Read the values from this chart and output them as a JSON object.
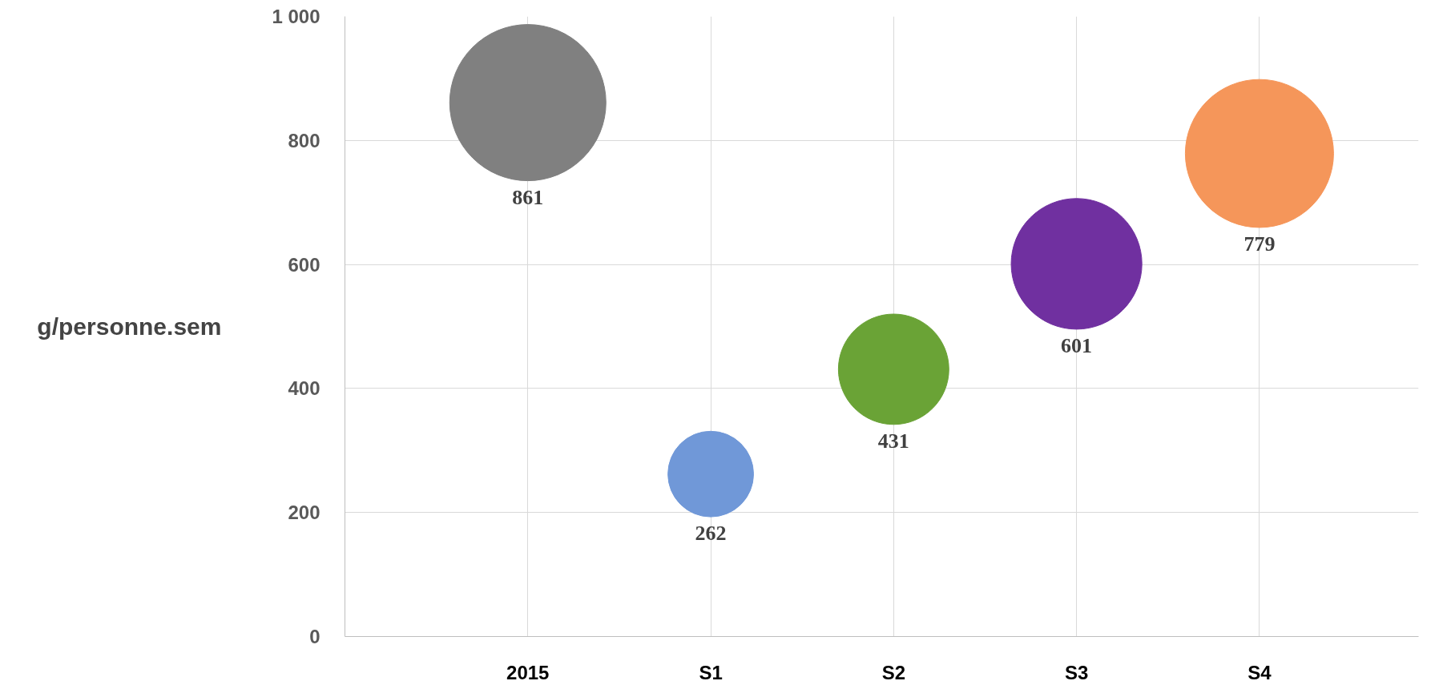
{
  "chart_data": {
    "type": "bubble",
    "ylabel": "g/personne.sem",
    "categories": [
      "2015",
      "S1",
      "S2",
      "S3",
      "S4"
    ],
    "values": [
      861,
      262,
      431,
      601,
      779
    ],
    "sizes": [
      1,
      0.3,
      0.5,
      0.7,
      0.9
    ],
    "colors": [
      "#808080",
      "#7098d8",
      "#6aa336",
      "#7030a0",
      "#f5965a"
    ],
    "ylim": [
      0,
      1000
    ],
    "yticks": [
      0,
      200,
      400,
      600,
      800,
      {
        "value": 1000,
        "label": "1 000"
      }
    ],
    "grid": true,
    "data_labels": true
  }
}
